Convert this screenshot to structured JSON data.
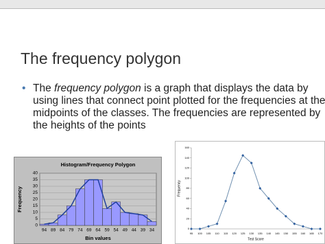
{
  "slide": {
    "title": "The frequency polygon",
    "bullet": [
      "The ",
      "frequency polygon",
      " is a graph that displays the data by using lines that connect point plotted for the frequencies at the midpoints of the classes. The frequencies are represented by the heights of the points"
    ]
  },
  "chart_data": [
    {
      "type": "bar",
      "title": "Histogram/Frequency Polygon",
      "x_label": "Bin values",
      "y_label": "Frequency",
      "categories": [
        "94",
        "89",
        "84",
        "79",
        "74",
        "69",
        "64",
        "59",
        "54",
        "49",
        "44",
        "39",
        "34"
      ],
      "values": [
        1,
        2,
        8,
        15,
        28,
        35,
        35,
        13,
        18,
        10,
        9,
        8,
        3
      ],
      "color": "#9999ff",
      "line_color": "#1f3f9f",
      "ylim": [
        0,
        40
      ],
      "yticks": [
        0,
        5,
        10,
        15,
        20,
        25,
        30,
        35,
        40
      ],
      "grid": true
    },
    {
      "type": "line",
      "x_label": "Test Score",
      "y_label": "Frequency",
      "categories": [
        "95",
        "100",
        "105",
        "110",
        "115",
        "120",
        "125",
        "130",
        "135",
        "140",
        "145",
        "150",
        "155",
        "160",
        "165",
        "170"
      ],
      "values": [
        0,
        0,
        5,
        10,
        55,
        110,
        145,
        130,
        80,
        60,
        40,
        25,
        10,
        5,
        0,
        0
      ],
      "color": "#7090b0",
      "ylim": [
        0,
        160
      ],
      "yticks": [
        0,
        20,
        40,
        60,
        80,
        100,
        120,
        140,
        160
      ],
      "grid": false
    }
  ]
}
